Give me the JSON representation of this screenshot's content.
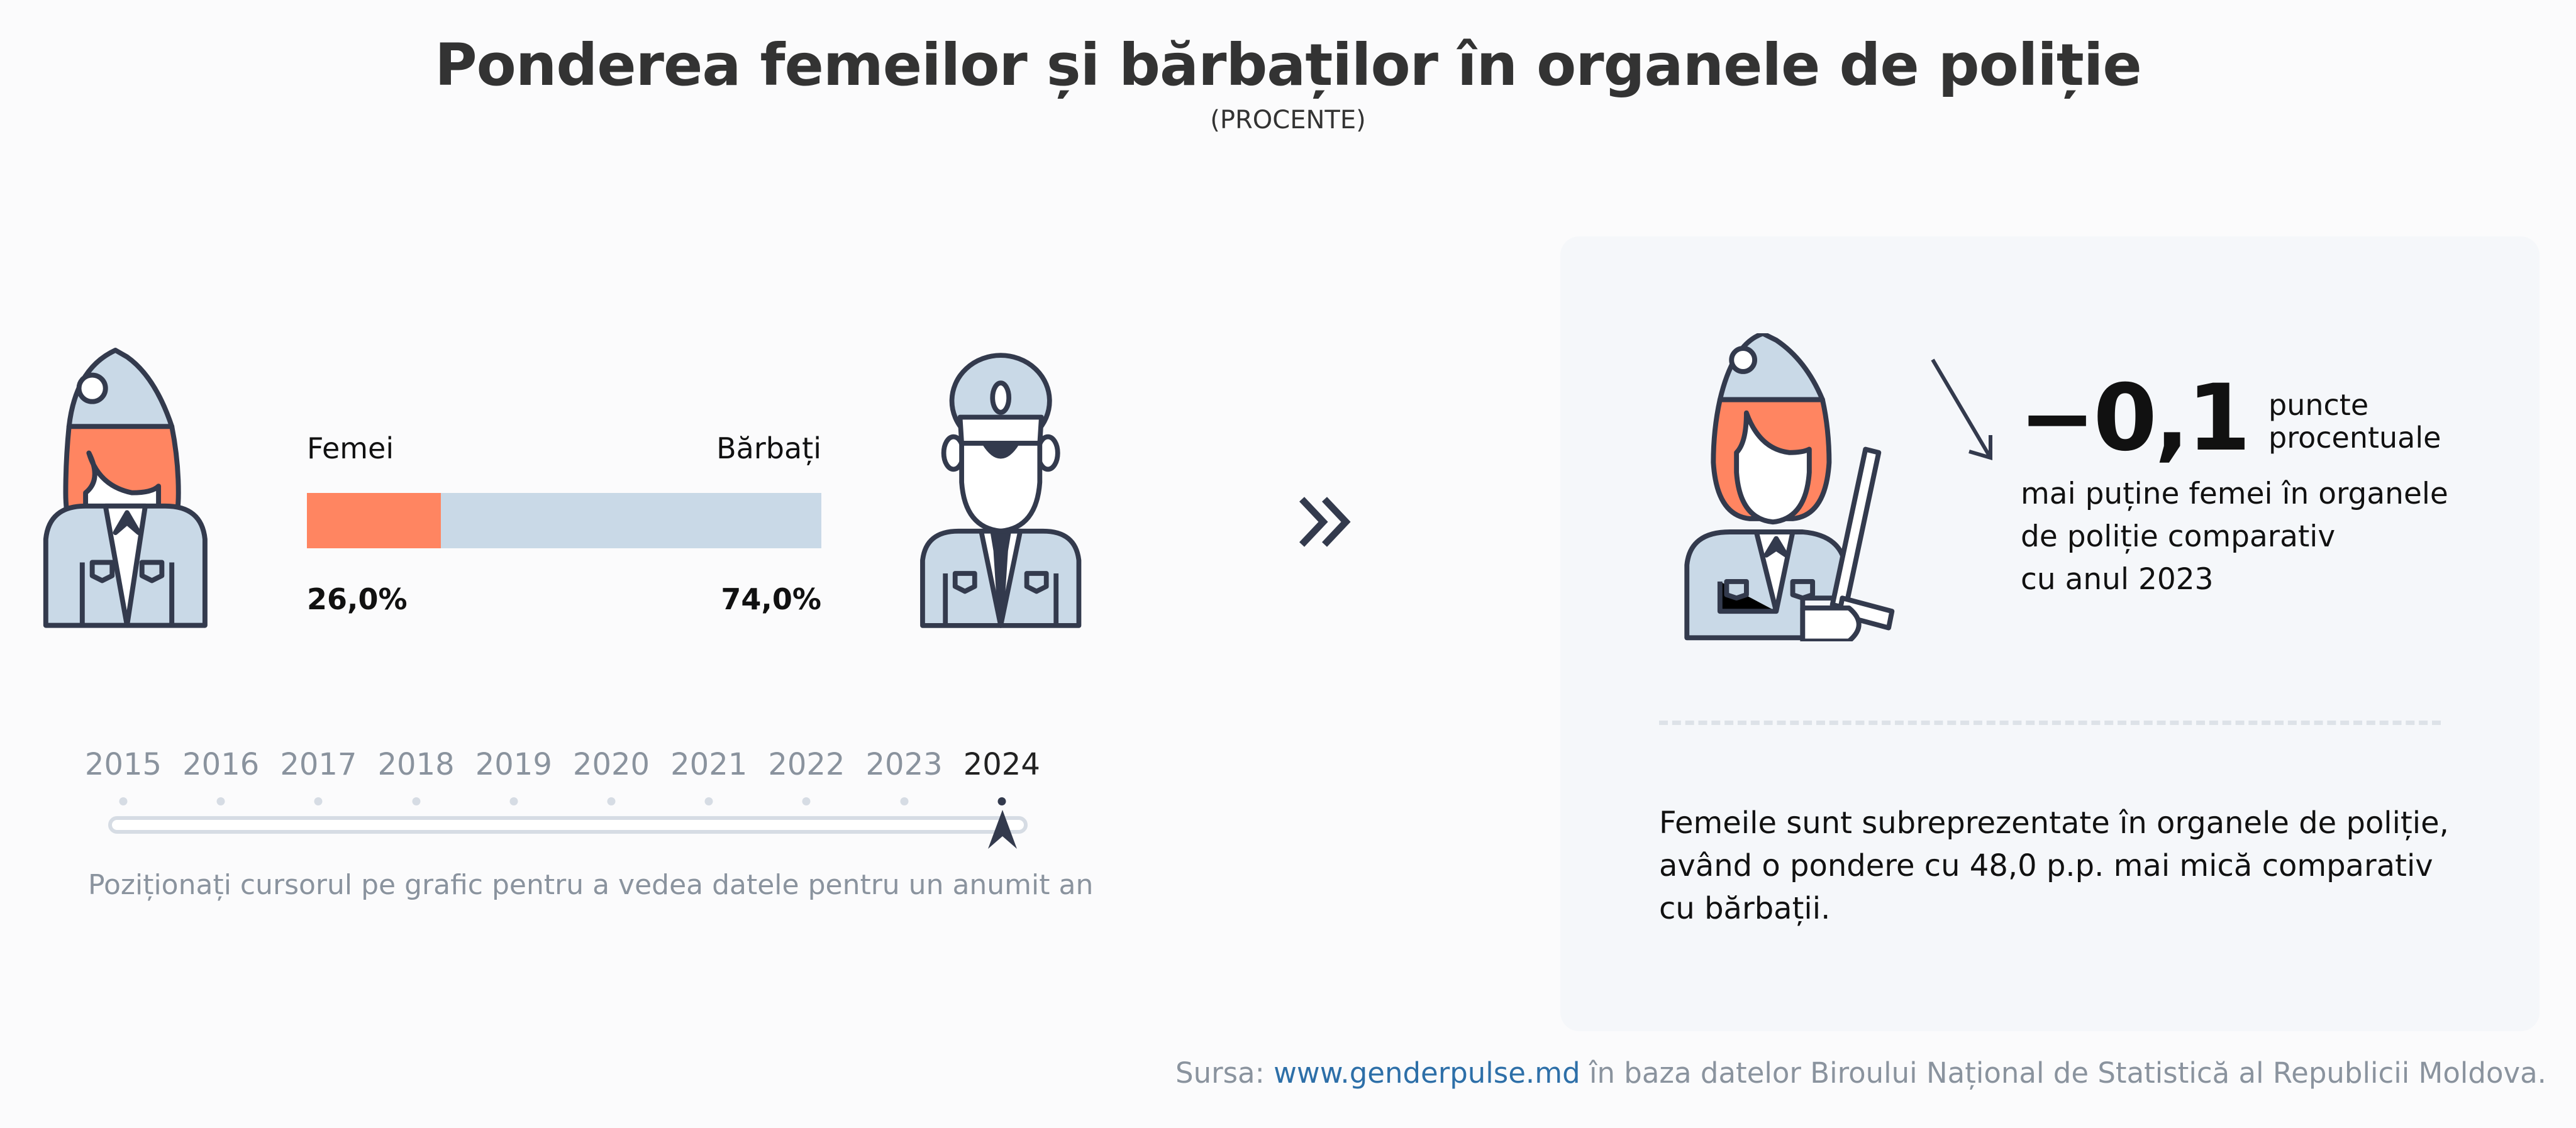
{
  "title": "Ponderea femeilor și bărbaților în organele de poliție",
  "subtitle": "(PROCENTE)",
  "colors": {
    "women": "#ff8561",
    "men": "#c9d9e7",
    "outline": "#333a4d",
    "link": "#2d6fa8"
  },
  "chart_data": {
    "type": "bar",
    "year": "2024",
    "series": [
      {
        "name": "Femei",
        "value": 26.0,
        "label": "26,0%"
      },
      {
        "name": "Bărbați",
        "value": 74.0,
        "label": "74,0%"
      }
    ]
  },
  "timeline": {
    "years": [
      "2015",
      "2016",
      "2017",
      "2018",
      "2019",
      "2020",
      "2021",
      "2022",
      "2023",
      "2024"
    ],
    "selected": "2024",
    "hint": "Poziționați cursorul pe grafic pentru a vedea datele pentru un anumit an"
  },
  "card": {
    "change_value": "−0,1",
    "change_unit_line1": "puncte",
    "change_unit_line2": "procentuale",
    "desc_lines": [
      "mai puține femei în organele",
      "de poliție comparativ",
      "cu anul 2023"
    ],
    "note_lines": [
      "Femeile sunt subreprezentate în organele de poliție,",
      "având o pondere cu 48,0 p.p. mai mică comparativ",
      "cu bărbații."
    ],
    "icons": {
      "trend": "arrow-down-right-icon",
      "figure": "policewoman-baton-icon"
    }
  },
  "icons": {
    "women": "policewoman-icon",
    "men": "policeman-icon",
    "next": "double-chevron-right-icon"
  },
  "source": {
    "prefix": "Sursa: ",
    "link_text": "www.genderpulse.md",
    "suffix": " în baza datelor Biroului Național de Statistică al Republicii Moldova."
  }
}
